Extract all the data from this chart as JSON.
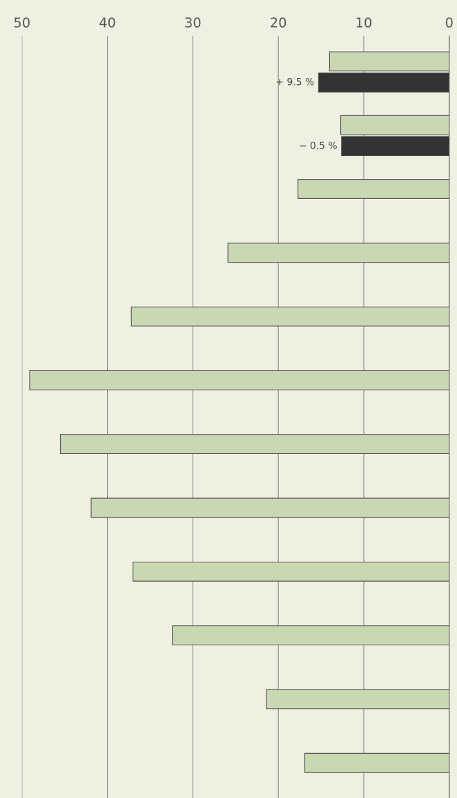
{
  "chart_data": {
    "type": "bar",
    "orientation": "horizontal",
    "categories": [
      null,
      null,
      null,
      null,
      null,
      null,
      null,
      null,
      null,
      null,
      null,
      null
    ],
    "series": [
      {
        "color": "#c9d8b2",
        "values": [
          14.0,
          12.7,
          17.7,
          25.9,
          37.2,
          49.1,
          45.5,
          41.9,
          37.0,
          32.4,
          21.4,
          16.9
        ]
      },
      {
        "color": "#333333",
        "values": [
          15.3,
          12.6,
          null,
          null,
          null,
          null,
          null,
          null,
          null,
          null,
          null,
          null
        ]
      }
    ],
    "annotations": [
      "+ 9.5 %",
      "− 0.5 %"
    ],
    "xlim": [
      50,
      0
    ],
    "xticks": [
      50,
      40,
      30,
      20,
      10,
      0
    ],
    "tick_labels": "x",
    "grid": "x",
    "legend": false
  }
}
